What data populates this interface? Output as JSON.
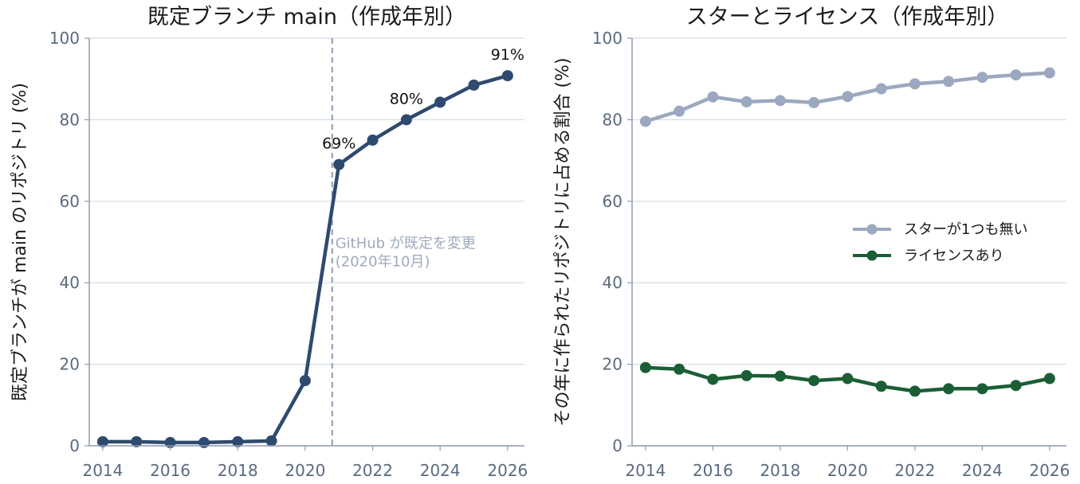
{
  "chart_data": [
    {
      "type": "line",
      "title": "既定ブランチ main（作成年別）",
      "xlabel": "",
      "ylabel": "既定ブランチが main のリポジトリ (%)",
      "xlim": [
        2013.6,
        2026.5
      ],
      "ylim": [
        0,
        100
      ],
      "xticks": [
        2014,
        2016,
        2018,
        2020,
        2022,
        2024,
        2026
      ],
      "yticks": [
        0,
        20,
        40,
        60,
        80,
        100
      ],
      "grid": "horizontal",
      "series": [
        {
          "color": "#2e4a6e",
          "x": [
            2014,
            2015,
            2016,
            2017,
            2018,
            2019,
            2020,
            2021,
            2022,
            2023,
            2024,
            2025,
            2026
          ],
          "y": [
            1.0,
            1.0,
            0.8,
            0.8,
            1.0,
            1.2,
            16,
            69,
            75,
            80,
            84.3,
            88.5,
            90.8
          ]
        }
      ],
      "data_labels": [
        {
          "x": 2021,
          "y": 69,
          "text": "69%"
        },
        {
          "x": 2023,
          "y": 80,
          "text": "80%"
        },
        {
          "x": 2026,
          "y": 90.8,
          "text": "91%"
        }
      ],
      "annotations": [
        {
          "type": "vline",
          "x": 2020.8,
          "color": "#8f9bb0",
          "lines": [
            "GitHub が既定を変更",
            "(2020年10月)"
          ]
        }
      ]
    },
    {
      "type": "line",
      "title": "スターとライセンス（作成年別）",
      "xlabel": "",
      "ylabel": "その年に作られたリポジトリに占める割合 (%)",
      "xlim": [
        2013.6,
        2026.5
      ],
      "ylim": [
        0,
        100
      ],
      "xticks": [
        2014,
        2016,
        2018,
        2020,
        2022,
        2024,
        2026
      ],
      "yticks": [
        0,
        20,
        40,
        60,
        80,
        100
      ],
      "grid": "horizontal",
      "legend": "center-right",
      "series": [
        {
          "name": "スターが1つも無い",
          "color": "#9ba8bf",
          "x": [
            2014,
            2015,
            2016,
            2017,
            2018,
            2019,
            2020,
            2021,
            2022,
            2023,
            2024,
            2025,
            2026
          ],
          "y": [
            79.6,
            82.1,
            85.6,
            84.4,
            84.7,
            84.2,
            85.7,
            87.6,
            88.8,
            89.4,
            90.4,
            91.0,
            91.5
          ]
        },
        {
          "name": "ライセンスあり",
          "color": "#1b5e35",
          "x": [
            2014,
            2015,
            2016,
            2017,
            2018,
            2019,
            2020,
            2021,
            2022,
            2023,
            2024,
            2025,
            2026
          ],
          "y": [
            19.2,
            18.8,
            16.3,
            17.2,
            17.1,
            16.0,
            16.5,
            14.6,
            13.4,
            14.0,
            14.0,
            14.8,
            16.5
          ]
        }
      ]
    }
  ]
}
